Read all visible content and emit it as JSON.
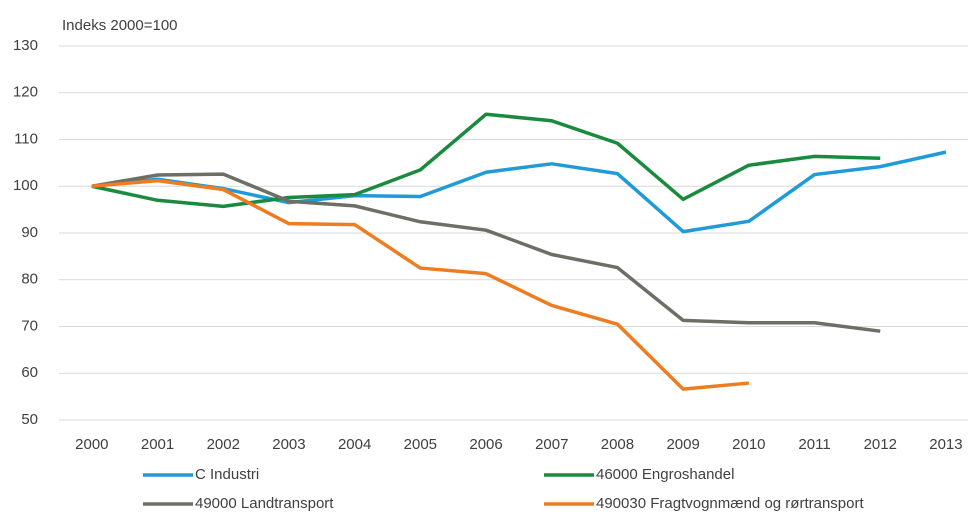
{
  "chart_data": {
    "type": "line",
    "y_label": "Indeks 2000=100",
    "categories": [
      "2000",
      "2001",
      "2002",
      "2003",
      "2004",
      "2005",
      "2006",
      "2007",
      "2008",
      "2009",
      "2010",
      "2011",
      "2012",
      "2013"
    ],
    "series": [
      {
        "name": "C Industri",
        "color": "#1f9bd7",
        "values": [
          100,
          101.5,
          99.5,
          96.5,
          98,
          97.8,
          103,
          104.8,
          102.7,
          90.3,
          92.5,
          102.5,
          104.2,
          107.3
        ]
      },
      {
        "name": "46000 Engroshandel",
        "color": "#1a8a3f",
        "values": [
          100,
          97,
          95.7,
          97.6,
          98.2,
          103.5,
          115.4,
          114,
          109.2,
          97.2,
          104.5,
          106.4,
          106,
          null
        ]
      },
      {
        "name": "49000 Landtransport",
        "color": "#6d6e66",
        "values": [
          100,
          102.4,
          102.6,
          96.8,
          95.8,
          92.4,
          90.6,
          85.4,
          82.6,
          71.3,
          70.8,
          70.8,
          69,
          null
        ]
      },
      {
        "name": "490030 Fragtvognmænd og rørtransport",
        "color": "#ed7d20",
        "values": [
          100,
          101.2,
          99.3,
          92,
          91.8,
          82.5,
          81.3,
          74.5,
          70.5,
          56.6,
          57.9,
          null,
          null,
          null
        ]
      }
    ],
    "ylim": [
      50,
      130
    ],
    "yticks": [
      50,
      60,
      70,
      80,
      90,
      100,
      110,
      120,
      130
    ],
    "grid": true
  }
}
